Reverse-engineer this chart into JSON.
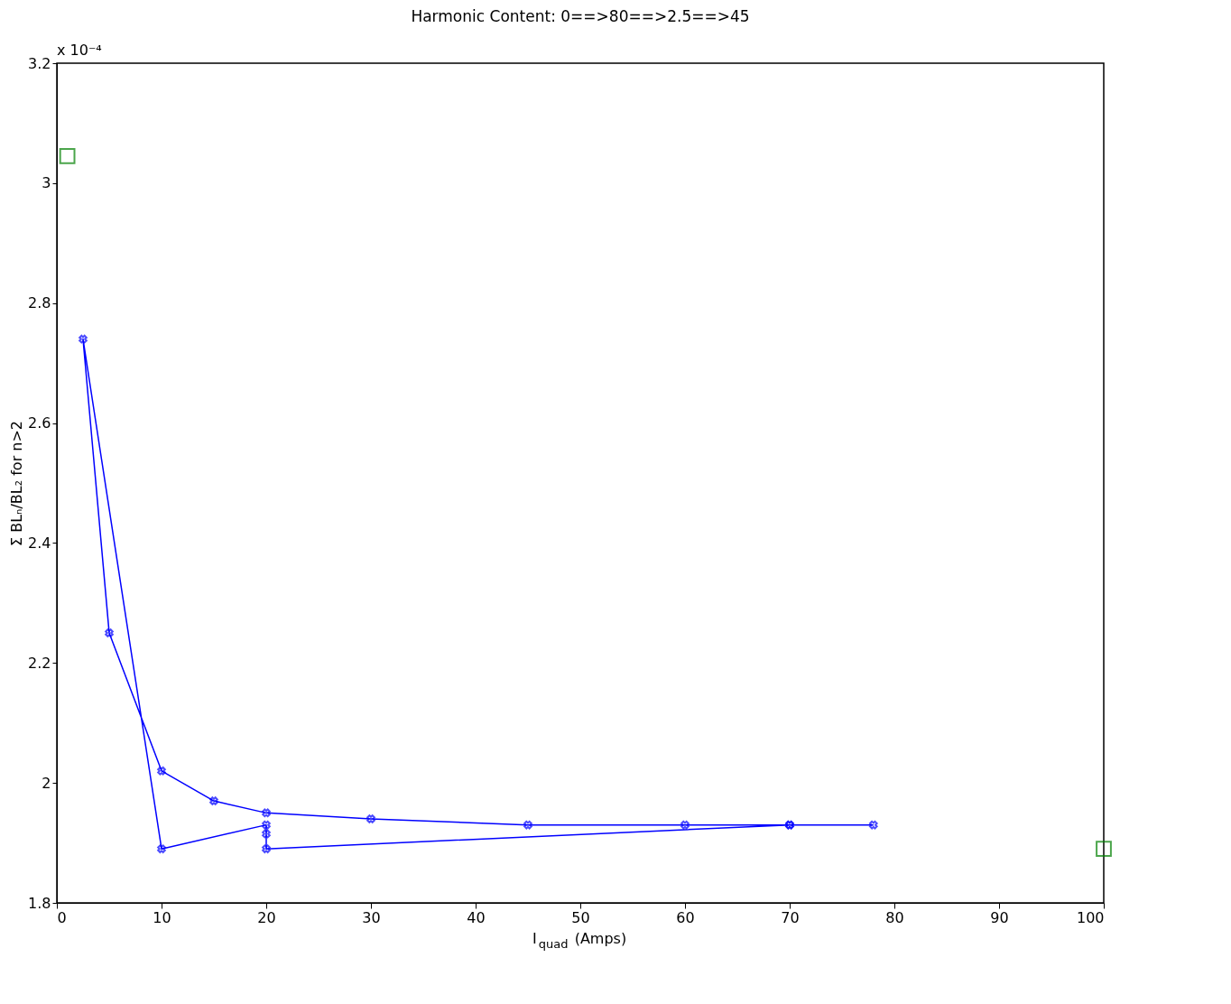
{
  "chart_data": {
    "type": "line",
    "title": "Harmonic Content: 0==>80==>2.5==>45",
    "xlabel": "I$_{quad}$ (Amps)",
    "ylabel": "Σ BLₙ/BL₂ for n>2",
    "annotations": [
      "x 10⁻⁴"
    ],
    "xlim": [
      0,
      100
    ],
    "xticks": [
      0,
      10,
      20,
      30,
      40,
      50,
      60,
      70,
      80,
      90,
      100
    ],
    "ylim": [
      1.8,
      3.2
    ],
    "yticks": [
      1.8,
      2,
      2.2,
      2.4,
      2.6,
      2.8,
      3,
      3.2
    ],
    "grid": false,
    "legend": false,
    "series": [
      {
        "color": "#0000ff",
        "marker": "cross",
        "line_style": "solid",
        "x": [
          70,
          20,
          20,
          20,
          10,
          2.5,
          5,
          10,
          15,
          20,
          30,
          45,
          60,
          70,
          78
        ],
        "values": [
          1.93,
          1.89,
          1.915,
          1.93,
          1.89,
          2.74,
          2.25,
          2.02,
          1.97,
          1.95,
          1.94,
          1.93,
          1.93,
          1.93,
          1.93
        ]
      },
      {
        "type": "scatter",
        "color": "#008000",
        "marker": "square",
        "x": [
          1,
          100
        ],
        "values": [
          3.045,
          1.89
        ]
      }
    ]
  }
}
